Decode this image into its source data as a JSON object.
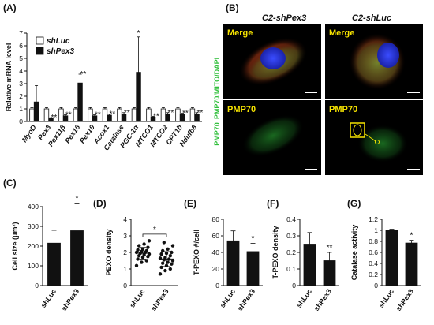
{
  "colors": {
    "bar_dark": "#111111",
    "bar_light": "#ffffff",
    "merge_red": "#c8261c",
    "pmp70_green": "#2fbf3a",
    "dapi_blue": "#2433e0",
    "label_yellow": "#f5e200"
  },
  "panels": {
    "A": "(A)",
    "B": "(B)",
    "C": "(C)",
    "D": "(D)",
    "E": "(E)",
    "F": "(F)",
    "G": "(G)"
  },
  "microscopy": {
    "col_left_title": "C2-shPex3",
    "col_right_title": "C2-shLuc",
    "merge_label": "Merge",
    "pmp70_label": "PMP70",
    "side_top": "PMP70/MITO/DAPI",
    "side_bottom": "PMP70"
  },
  "chart_data": [
    {
      "panel": "A",
      "type": "bar",
      "ylabel": "Relative mRNA level",
      "ylim": [
        0,
        7
      ],
      "yticks": [
        0,
        1,
        2,
        3,
        4,
        5,
        6,
        7
      ],
      "categories": [
        "MyoD",
        "Pex3",
        "Pex11β",
        "Pex16",
        "Pex19",
        "Acox1",
        "Catalase",
        "PGC-1α",
        "MTCO1",
        "MTCO2",
        "CPT1b",
        "Ndufb8"
      ],
      "series": [
        {
          "name": "shLuc",
          "values": [
            1,
            1,
            1,
            1,
            1,
            1,
            1,
            1,
            1,
            1,
            1,
            1
          ],
          "err": [
            0.1,
            0.1,
            0.1,
            0.1,
            0.1,
            0.1,
            0.1,
            0.1,
            0.1,
            0.1,
            0.1,
            0.1
          ]
        },
        {
          "name": "shPex3",
          "values": [
            1.55,
            0.25,
            0.45,
            3.05,
            0.45,
            0.5,
            0.6,
            3.9,
            0.35,
            0.6,
            0.55,
            0.6
          ],
          "err": [
            1.3,
            0.05,
            0.08,
            0.7,
            0.08,
            0.08,
            0.1,
            2.8,
            0.06,
            0.1,
            0.1,
            0.1
          ]
        }
      ],
      "significance": [
        "",
        "**",
        "**",
        "**",
        "**",
        "**",
        "**",
        "*",
        "**",
        "**",
        "**",
        "**"
      ]
    },
    {
      "panel": "C",
      "type": "bar",
      "ylabel": "Cell size (μm²)",
      "ylim": [
        0,
        400
      ],
      "yticks": [
        0,
        100,
        200,
        300,
        400
      ],
      "categories": [
        "shLuc",
        "shPex3"
      ],
      "values": [
        215,
        278
      ],
      "err": [
        65,
        140
      ],
      "significance": [
        "",
        "*"
      ]
    },
    {
      "panel": "D",
      "type": "scatter",
      "ylabel": "PEXO density",
      "ylim": [
        0,
        4
      ],
      "yticks": [
        0,
        1,
        2,
        3,
        4
      ],
      "categories": [
        "shLuc",
        "shPex3"
      ],
      "means": [
        1.95,
        1.6
      ],
      "sd": [
        0.35,
        0.45
      ],
      "points": [
        [
          1.2,
          1.4,
          1.5,
          1.6,
          1.7,
          1.75,
          1.8,
          1.85,
          1.9,
          1.95,
          2.0,
          2.0,
          2.05,
          2.1,
          2.15,
          2.2,
          2.3,
          2.4,
          2.5,
          2.7
        ],
        [
          0.7,
          0.9,
          1.0,
          1.1,
          1.2,
          1.3,
          1.35,
          1.4,
          1.5,
          1.55,
          1.6,
          1.65,
          1.7,
          1.8,
          1.9,
          1.95,
          2.0,
          2.1,
          2.2,
          2.4,
          2.6
        ]
      ],
      "significance_bracket": "*"
    },
    {
      "panel": "E",
      "type": "bar",
      "ylabel": "T-PEXO #/cell",
      "ylim": [
        0,
        80
      ],
      "yticks": [
        0,
        20,
        40,
        60,
        80
      ],
      "categories": [
        "shLuc",
        "shPex3"
      ],
      "values": [
        54,
        41
      ],
      "err": [
        12,
        10
      ],
      "significance": [
        "",
        "*"
      ]
    },
    {
      "panel": "F",
      "type": "bar",
      "ylabel": "T-PEXO density",
      "ylim": [
        0,
        0.4
      ],
      "yticks": [
        0,
        0.1,
        0.2,
        0.3,
        0.4
      ],
      "categories": [
        "shLuc",
        "shPex3"
      ],
      "values": [
        0.25,
        0.15
      ],
      "err": [
        0.07,
        0.05
      ],
      "significance": [
        "",
        "**"
      ]
    },
    {
      "panel": "G",
      "type": "bar",
      "ylabel": "Catalase activity",
      "ylim": [
        0,
        1.2
      ],
      "yticks": [
        0,
        0.2,
        0.4,
        0.6,
        0.8,
        1.0,
        1.2
      ],
      "categories": [
        "shLuc",
        "shPex3"
      ],
      "values": [
        1.0,
        0.77
      ],
      "err": [
        0.02,
        0.05
      ],
      "significance": [
        "",
        "*"
      ]
    }
  ]
}
